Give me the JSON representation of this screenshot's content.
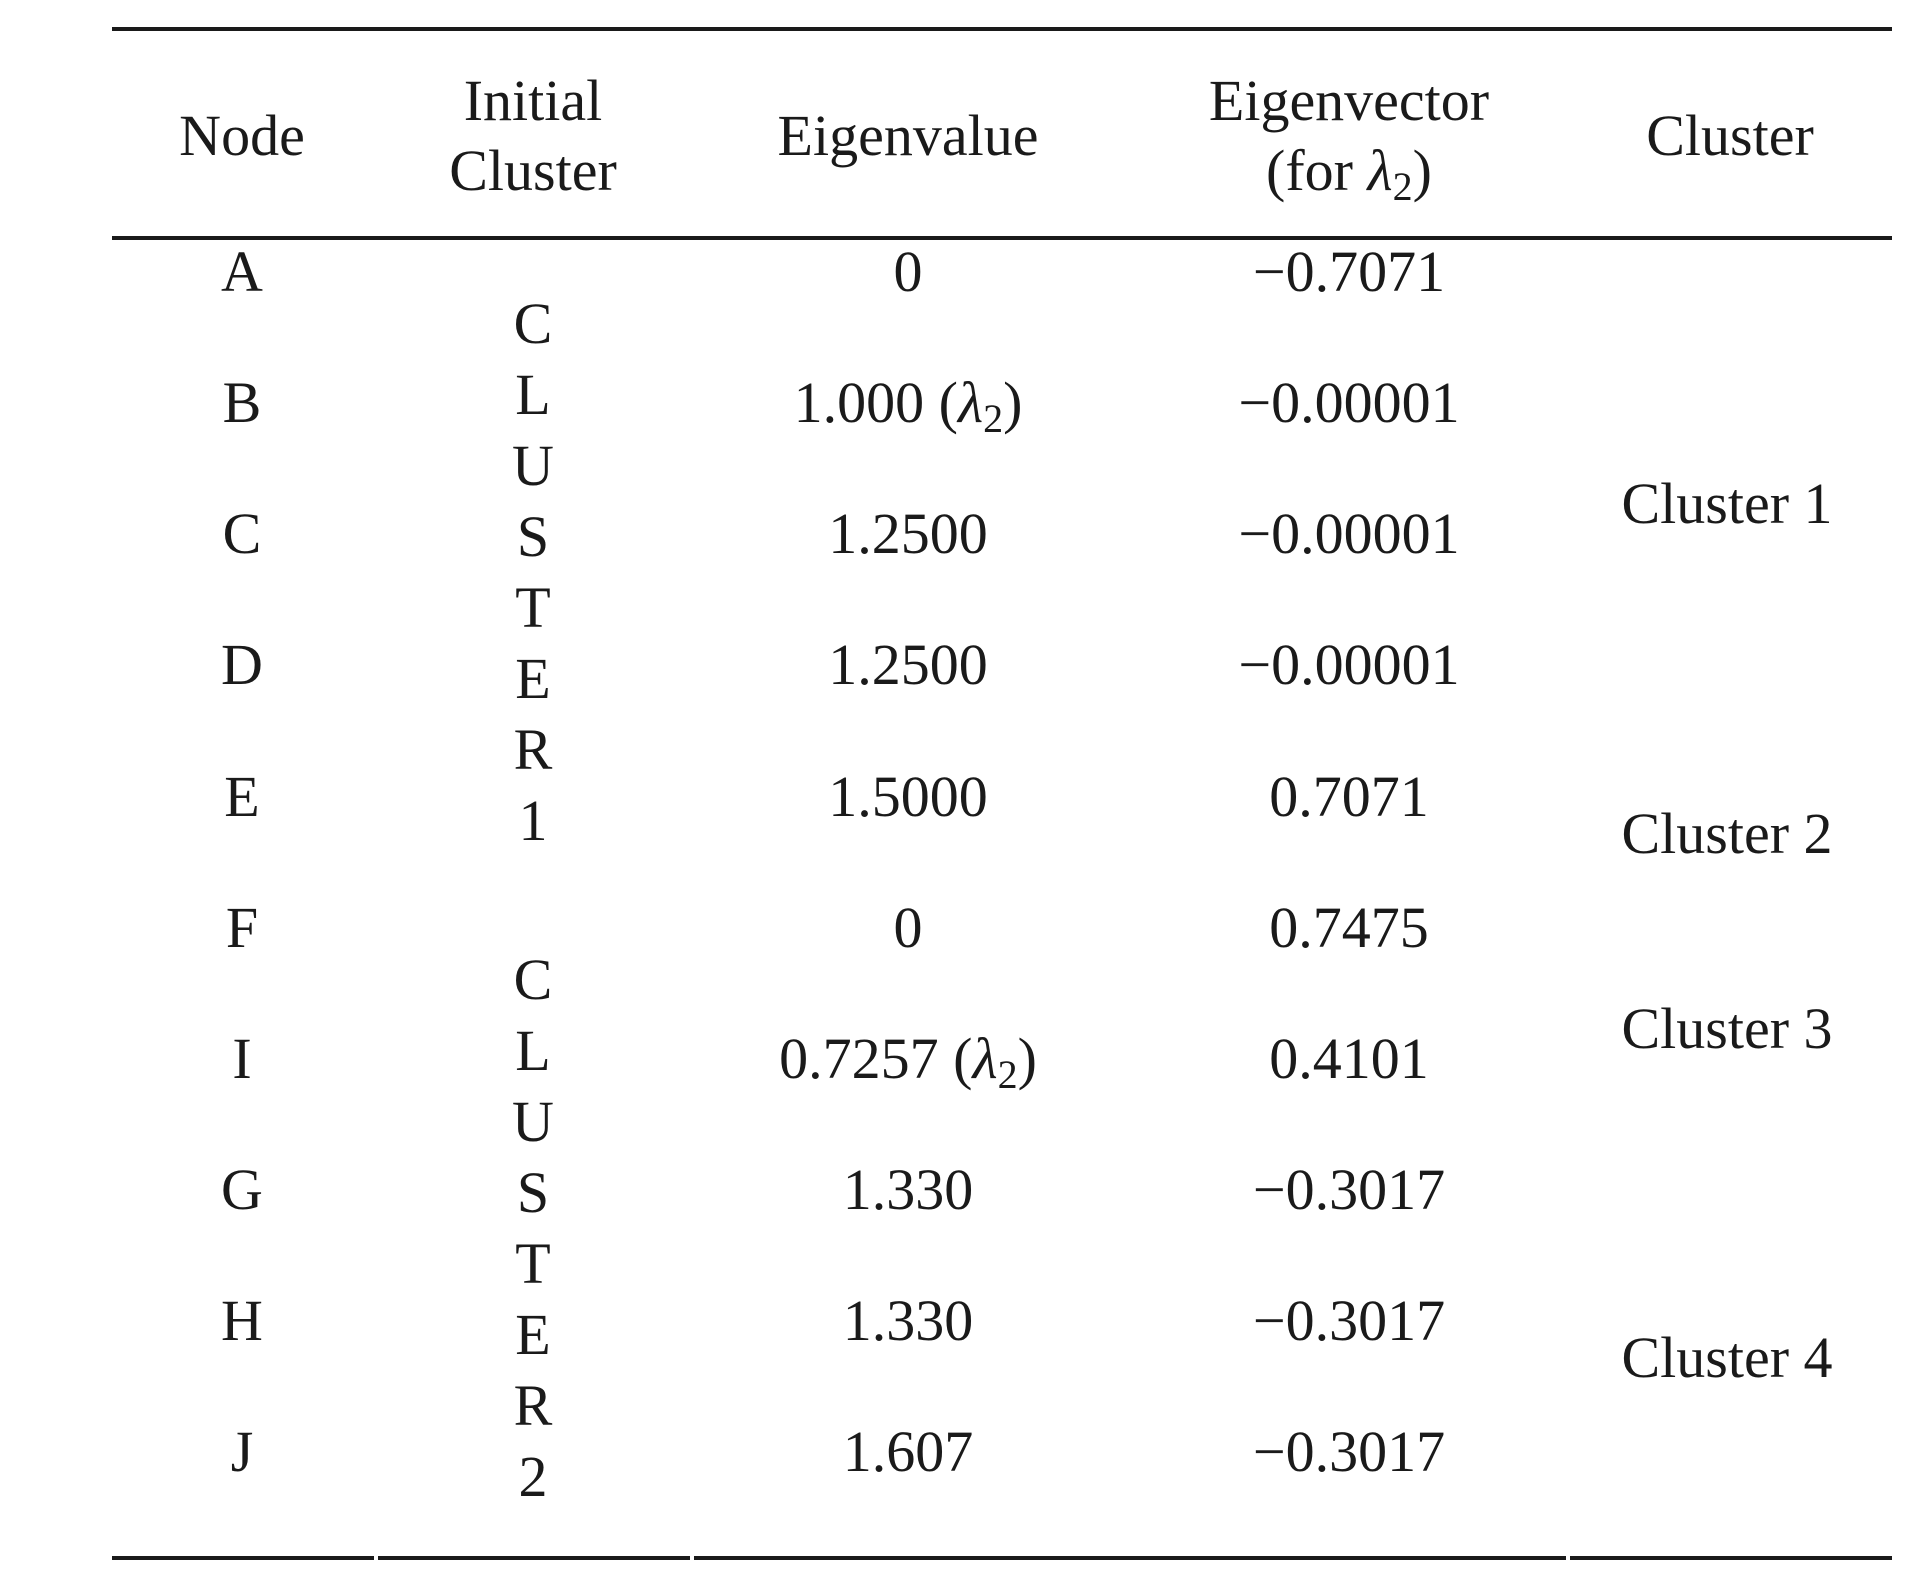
{
  "table": {
    "headers": {
      "node": "Node",
      "initial_cluster_line1": "Initial",
      "initial_cluster_line2": "Cluster",
      "eigenvalue": "Eigenvalue",
      "eigenvector_line1": "Eigenvector",
      "eigenvector_line2_prefix": "(for ",
      "eigenvector_line2_symbol": "λ",
      "eigenvector_line2_sub": "2",
      "eigenvector_line2_suffix": ")",
      "cluster": "Cluster"
    },
    "initial_clusters": [
      {
        "letters": [
          "C",
          "L",
          "U",
          "S",
          "T",
          "E",
          "R",
          "1"
        ]
      },
      {
        "letters": [
          "C",
          "L",
          "U",
          "S",
          "T",
          "E",
          "R",
          "2"
        ]
      }
    ],
    "rows": [
      {
        "node": "A",
        "eigenvalue": "0",
        "eigenvalue_lambda": false,
        "eigenvector": "−0.7071"
      },
      {
        "node": "B",
        "eigenvalue": "1.000",
        "eigenvalue_lambda": true,
        "eigenvector": "−0.00001"
      },
      {
        "node": "C",
        "eigenvalue": "1.2500",
        "eigenvalue_lambda": false,
        "eigenvector": "−0.00001"
      },
      {
        "node": "D",
        "eigenvalue": "1.2500",
        "eigenvalue_lambda": false,
        "eigenvector": "−0.00001"
      },
      {
        "node": "E",
        "eigenvalue": "1.5000",
        "eigenvalue_lambda": false,
        "eigenvector": "0.7071"
      },
      {
        "node": "F",
        "eigenvalue": "0",
        "eigenvalue_lambda": false,
        "eigenvector": "0.7475"
      },
      {
        "node": "I",
        "eigenvalue": "0.7257",
        "eigenvalue_lambda": true,
        "eigenvector": "0.4101"
      },
      {
        "node": "G",
        "eigenvalue": "1.330",
        "eigenvalue_lambda": false,
        "eigenvector": "−0.3017"
      },
      {
        "node": "H",
        "eigenvalue": "1.330",
        "eigenvalue_lambda": false,
        "eigenvector": "−0.3017"
      },
      {
        "node": "J",
        "eigenvalue": "1.607",
        "eigenvalue_lambda": false,
        "eigenvector": "−0.3017"
      }
    ],
    "lambda_symbol": "λ",
    "lambda_sub": "2",
    "final_clusters": [
      {
        "label": "Cluster 1"
      },
      {
        "label": "Cluster 2"
      },
      {
        "label": "Cluster 3"
      },
      {
        "label": "Cluster 4"
      }
    ]
  }
}
